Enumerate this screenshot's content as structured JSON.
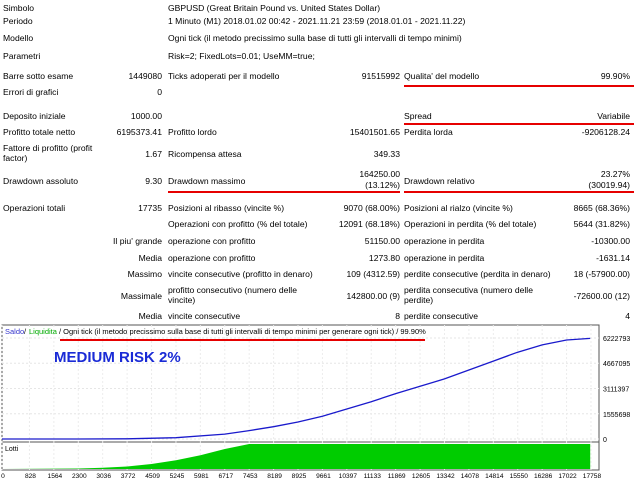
{
  "header": {
    "symbol_label": "Simbolo",
    "symbol_value": "GBPUSD (Great Britain Pound vs. United States Dollar)",
    "period_label": "Periodo",
    "period_value": "1 Minuto (M1) 2018.01.02 00:42 - 2021.11.21 23:59 (2018.01.01 - 2021.11.22)",
    "model_label": "Modello",
    "model_value": "Ogni tick (il metodo precissimo sulla base di tutti gli intervalli di tempo minimi)",
    "params_label": "Parametri",
    "params_value": "Risk=2; FixedLots=0.01; UseMM=true;"
  },
  "stats": {
    "bars_label": "Barre sotto esame",
    "bars_value": "1449080",
    "ticks_label": "Ticks adoperati per il modello",
    "ticks_value": "91515992",
    "quality_label": "Qualita' del modello",
    "quality_value": "99.90%",
    "errors_label": "Errori di grafici",
    "errors_value": "0",
    "deposit_label": "Deposito iniziale",
    "deposit_value": "1000.00",
    "spread_label": "Spread",
    "spread_value": "Variabile",
    "net_label": "Profitto totale netto",
    "net_value": "6195373.41",
    "gross_label": "Profitto lordo",
    "gross_value": "15401501.65",
    "loss_label": "Perdita lorda",
    "loss_value": "-9206128.24",
    "pf_label": "Fattore di profitto (profit factor)",
    "pf_value": "1.67",
    "payoff_label": "Ricompensa attesa",
    "payoff_value": "349.33",
    "dd_abs_label": "Drawdown assoluto",
    "dd_abs_value": "9.30",
    "dd_max_label": "Drawdown massimo",
    "dd_max_value": "164250.00",
    "dd_max_pct": "(13.12%)",
    "dd_rel_label": "Drawdown relativo",
    "dd_rel_value": "23.27%",
    "dd_rel_amount": "(30019.94)",
    "total_label": "Operazioni totali",
    "total_value": "17735",
    "short_label": "Posizioni al ribasso (vincite %)",
    "short_value": "9070 (68.00%)",
    "long_label": "Posizioni al rialzo (vincite %)",
    "long_value": "8665 (68.36%)",
    "win_label": "Operazioni con profitto (% del totale)",
    "win_value": "12091 (68.18%)",
    "lossops_label": "Operazioni in perdita (% del totale)",
    "lossops_value": "5644 (31.82%)",
    "largest_label": "Il piu' grande",
    "largest_win_label": "operazione con profitto",
    "largest_win_value": "51150.00",
    "largest_loss_label": "operazione in perdita",
    "largest_loss_value": "-10300.00",
    "avg_label": "Media",
    "avg_win_label": "operazione con profitto",
    "avg_win_value": "1273.80",
    "avg_loss_label": "operazione in perdita",
    "avg_loss_value": "-1631.14",
    "max_label": "Massimo",
    "max_wins_label": "vincite consecutive (profitto in denaro)",
    "max_wins_value": "109 (4312.59)",
    "max_losses_label": "perdite consecutive (perdita in denaro)",
    "max_losses_value": "18 (-57900.00)",
    "maximal_label": "Massimale",
    "maximal_profit_label": "profitto consecutivo (numero delle vincite)",
    "maximal_profit_value": "142800.00 (9)",
    "maximal_loss_label": "perdita consecutiva (numero delle perdite)",
    "maximal_loss_value": "-72600.00 (12)",
    "avgcons_label": "Media",
    "avgcons_wins_label": "vincite consecutive",
    "avgcons_wins_value": "8",
    "avgcons_losses_label": "perdite consecutive",
    "avgcons_losses_value": "4"
  },
  "chart_header": {
    "saldo": "Saldo",
    "sep": "/",
    "liquidita": "Liquidita",
    "rest": "/ Ogni tick (il metodo precissimo sulla base di tutti gli intervalli di tempo minimi per generare ogni tick) / 99.90%",
    "overlay": "MEDIUM RISK 2%",
    "lots_label": "Lotti"
  },
  "colors": {
    "balance": "#1a1acc",
    "lots": "#00cc00",
    "saldo": "#3333cc",
    "liquidita": "#00aa00",
    "redline": "#e60000"
  },
  "chart_data": {
    "type": "line",
    "title": "",
    "xlabel": "",
    "ylabel": "",
    "y_ticks": [
      0,
      1555698,
      3111397,
      4667095,
      6222793
    ],
    "ylim": [
      0,
      6222793
    ],
    "x_ticks": [
      0,
      828,
      1564,
      2300,
      3036,
      3772,
      4509,
      5245,
      5981,
      6717,
      7453,
      8189,
      8925,
      9661,
      10397,
      11133,
      11869,
      12605,
      13342,
      14078,
      14814,
      15550,
      16286,
      17022,
      17758
    ],
    "xlim": [
      0,
      18000
    ],
    "series": [
      {
        "name": "Saldo",
        "x": [
          0,
          2300,
          3772,
          5245,
          6717,
          7453,
          8189,
          8925,
          9661,
          10397,
          11133,
          11869,
          12605,
          13342,
          14078,
          14814,
          15550,
          16286,
          17022,
          17735
        ],
        "values": [
          1000,
          2000,
          15000,
          80000,
          300000,
          520000,
          760000,
          1050000,
          1400000,
          1850000,
          2300000,
          2800000,
          3250000,
          3700000,
          4250000,
          4800000,
          5350000,
          5800000,
          6100000,
          6196373
        ]
      }
    ],
    "lots": {
      "x": [
        0,
        2300,
        3036,
        3772,
        4509,
        5245,
        5981,
        6717,
        7453,
        17735
      ],
      "values": [
        0,
        0.02,
        0.05,
        0.1,
        0.2,
        0.35,
        0.55,
        0.8,
        1,
        1
      ]
    }
  }
}
